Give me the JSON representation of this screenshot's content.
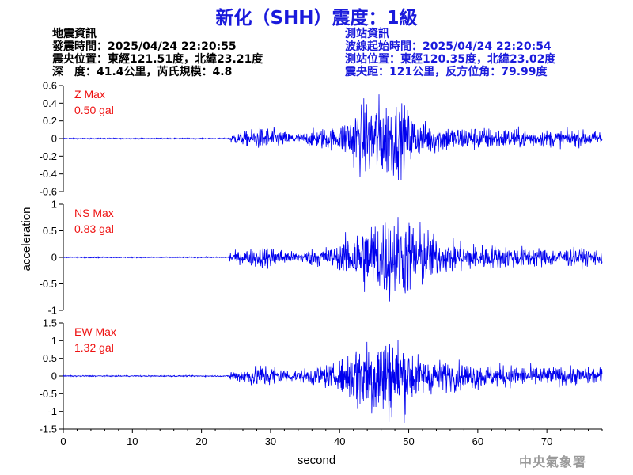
{
  "header": {
    "title": "新化（SHH）震度：1級"
  },
  "event_info": {
    "heading": "地震資訊",
    "origin_time": "發震時間：2025/04/24 22:20:55",
    "epicenter": "震央位置：東經121.51度，北緯23.21度",
    "depth_magnitude": "深　度：41.4公里，芮氏規模：4.8"
  },
  "station_info": {
    "heading": "測站資訊",
    "wave_start": "波線起始時間：2025/04/24 22:20:54",
    "location": "測站位置：東經120.35度，北緯23.02度",
    "distance": "震央距：121公里，反方位角：79.99度"
  },
  "footer": {
    "agency": "中央氣象署"
  },
  "colors": {
    "title": "#1a1adc",
    "trace": "#0000ee",
    "max_label": "#ee1111",
    "station_text": "#1a1adc",
    "agency": "#9a9a9a"
  },
  "chart_data": [
    {
      "type": "line",
      "series": [
        {
          "name": "Z",
          "peak": 0.5,
          "onset_s": 24,
          "strong_start_s": 40,
          "strong_end_s": 52
        }
      ],
      "max_label": "Z Max",
      "max_value_text": "0.50 gal",
      "ylim": [
        -0.6,
        0.6
      ],
      "yticks": [
        -0.6,
        -0.4,
        -0.2,
        0,
        0.2,
        0.4,
        0.6
      ],
      "ytick_labels": [
        "-0.6",
        "-0.4",
        "-0.2",
        "0",
        "0.2",
        "0.4",
        "0.6"
      ],
      "xlim": [
        0,
        78
      ],
      "ylabel": "",
      "grid": false
    },
    {
      "type": "line",
      "series": [
        {
          "name": "NS",
          "peak": 0.83,
          "onset_s": 24,
          "strong_start_s": 40,
          "strong_end_s": 55
        }
      ],
      "max_label": "NS Max",
      "max_value_text": "0.83 gal",
      "ylim": [
        -1,
        1
      ],
      "yticks": [
        -1,
        -0.5,
        0,
        0.5,
        1
      ],
      "ytick_labels": [
        "-1",
        "-0.5",
        "0",
        "0.5",
        "1"
      ],
      "xlim": [
        0,
        78
      ],
      "ylabel": "acceleration",
      "grid": false
    },
    {
      "type": "line",
      "series": [
        {
          "name": "EW",
          "peak": 1.32,
          "onset_s": 24,
          "strong_start_s": 40,
          "strong_end_s": 52
        }
      ],
      "max_label": "EW Max",
      "max_value_text": "1.32 gal",
      "ylim": [
        -1.5,
        1.5
      ],
      "yticks": [
        -1.5,
        -1,
        -0.5,
        0,
        0.5,
        1,
        1.5
      ],
      "ytick_labels": [
        "-1.5",
        "-1",
        "-0.5",
        "0",
        "0.5",
        "1",
        "1.5"
      ],
      "xlim": [
        0,
        78
      ],
      "xticks": [
        0,
        10,
        20,
        30,
        40,
        50,
        60,
        70
      ],
      "xtick_labels": [
        "0",
        "10",
        "20",
        "30",
        "40",
        "50",
        "60",
        "70"
      ],
      "xlabel": "second",
      "grid": false
    }
  ]
}
